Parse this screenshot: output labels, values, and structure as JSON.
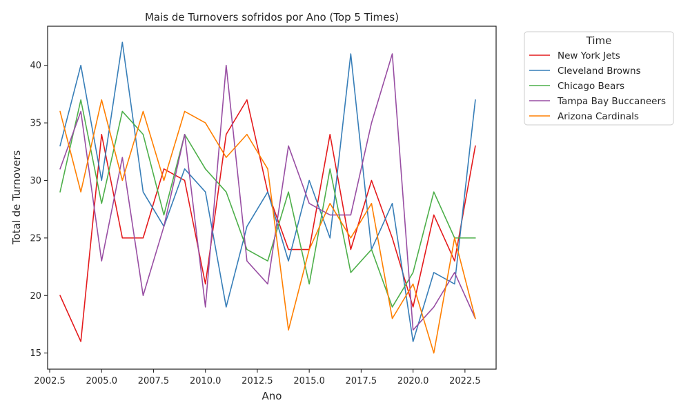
{
  "chart_data": {
    "type": "line",
    "title": "Mais de Turnovers sofridos por Ano (Top 5 Times)",
    "xlabel": "Ano",
    "ylabel": "Total de Turnovers",
    "xlim": [
      2002.4,
      2024.0
    ],
    "ylim": [
      13.6,
      43.4
    ],
    "xticks": [
      2002.5,
      2005.0,
      2007.5,
      2010.0,
      2012.5,
      2015.0,
      2017.5,
      2020.0,
      2022.5
    ],
    "xtick_labels": [
      "2002.5",
      "2005.0",
      "2007.5",
      "2010.0",
      "2012.5",
      "2015.0",
      "2017.5",
      "2020.0",
      "2022.5"
    ],
    "yticks": [
      15,
      20,
      25,
      30,
      35,
      40
    ],
    "ytick_labels": [
      "15",
      "20",
      "25",
      "30",
      "35",
      "40"
    ],
    "legend": {
      "title": "Time",
      "placement": "outside-top-right"
    },
    "grid": false,
    "x": [
      2003,
      2004,
      2005,
      2006,
      2007,
      2008,
      2009,
      2010,
      2011,
      2012,
      2013,
      2014,
      2015,
      2016,
      2017,
      2018,
      2019,
      2020,
      2021,
      2022,
      2023
    ],
    "series": [
      {
        "name": "New York Jets",
        "color": "#e41a1c",
        "values": [
          20,
          16,
          34,
          25,
          25,
          31,
          30,
          21,
          34,
          37,
          29,
          24,
          24,
          34,
          24,
          30,
          25,
          19,
          27,
          23,
          33
        ]
      },
      {
        "name": "Cleveland Browns",
        "color": "#377eb8",
        "values": [
          33,
          40,
          30,
          42,
          29,
          26,
          31,
          29,
          19,
          26,
          29,
          23,
          30,
          25,
          41,
          24,
          28,
          16,
          22,
          21,
          37
        ]
      },
      {
        "name": "Chicago Bears",
        "color": "#4daf4a",
        "values": [
          29,
          37,
          28,
          36,
          34,
          27,
          34,
          31,
          29,
          24,
          23,
          29,
          21,
          31,
          22,
          24,
          19,
          22,
          29,
          25,
          25
        ]
      },
      {
        "name": "Tampa Bay Buccaneers",
        "color": "#984ea3",
        "values": [
          31,
          36,
          23,
          32,
          20,
          26,
          34,
          19,
          40,
          23,
          21,
          33,
          28,
          27,
          27,
          35,
          41,
          17,
          19,
          22,
          18
        ]
      },
      {
        "name": "Arizona Cardinals",
        "color": "#ff7f00",
        "values": [
          36,
          29,
          37,
          30,
          36,
          30,
          36,
          35,
          32,
          34,
          31,
          17,
          24,
          28,
          25,
          28,
          18,
          21,
          15,
          25,
          18
        ]
      }
    ]
  }
}
